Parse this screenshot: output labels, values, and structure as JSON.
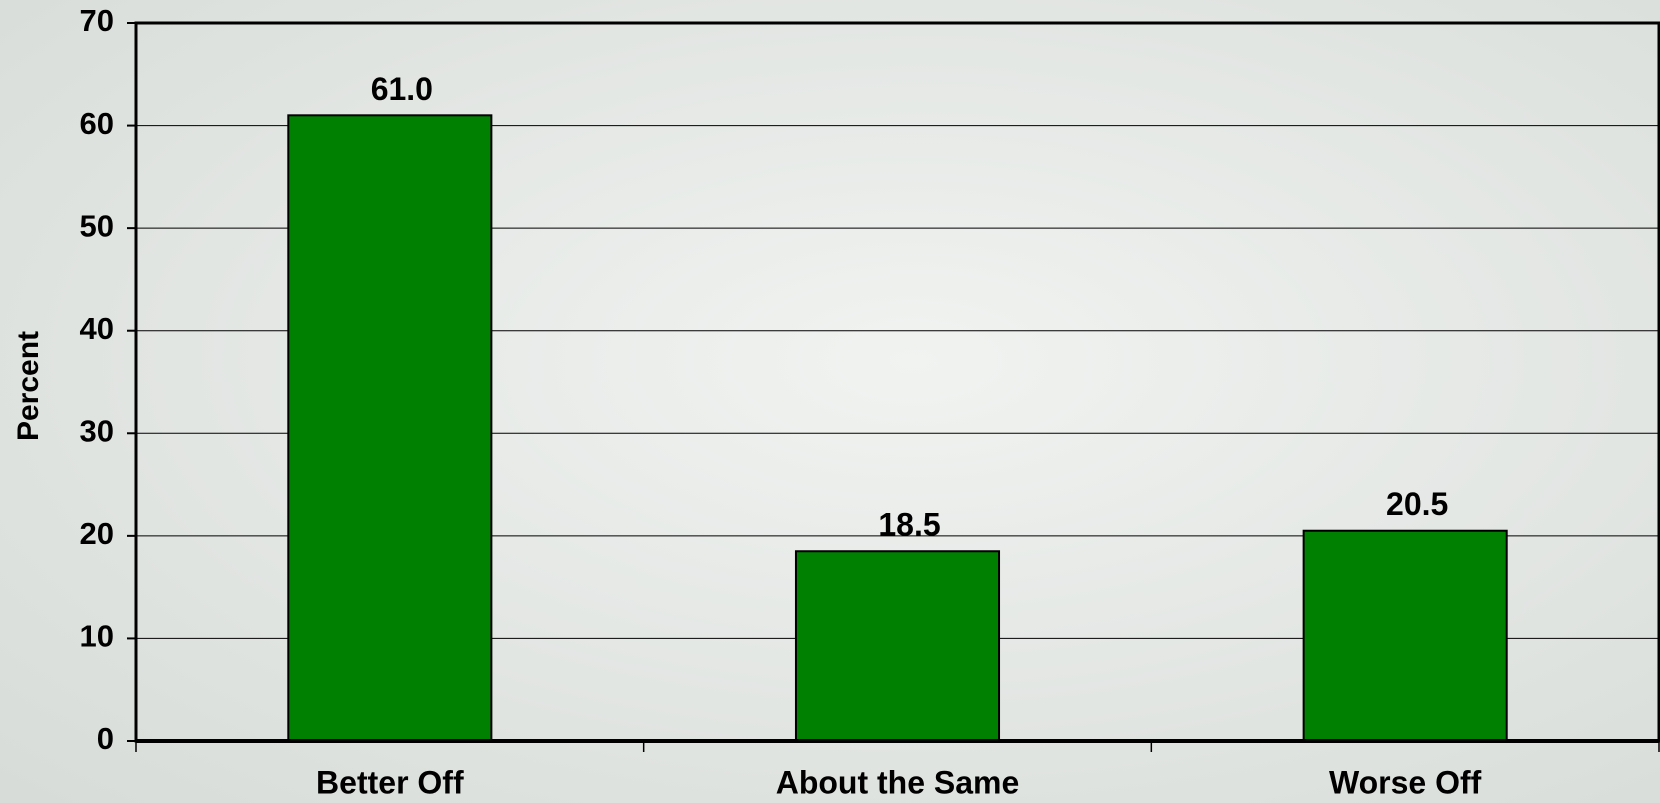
{
  "chart_data": {
    "type": "bar",
    "categories": [
      "Better Off",
      "About the Same",
      "Worse Off"
    ],
    "values": [
      61.0,
      18.5,
      20.5
    ],
    "value_labels": [
      "61.0",
      "18.5",
      "20.5"
    ],
    "color": "#008000",
    "y_label": "Percent",
    "ylim": [
      0,
      70
    ],
    "yticks": [
      0,
      10,
      20,
      30,
      40,
      50,
      60,
      70
    ],
    "grid": true
  }
}
